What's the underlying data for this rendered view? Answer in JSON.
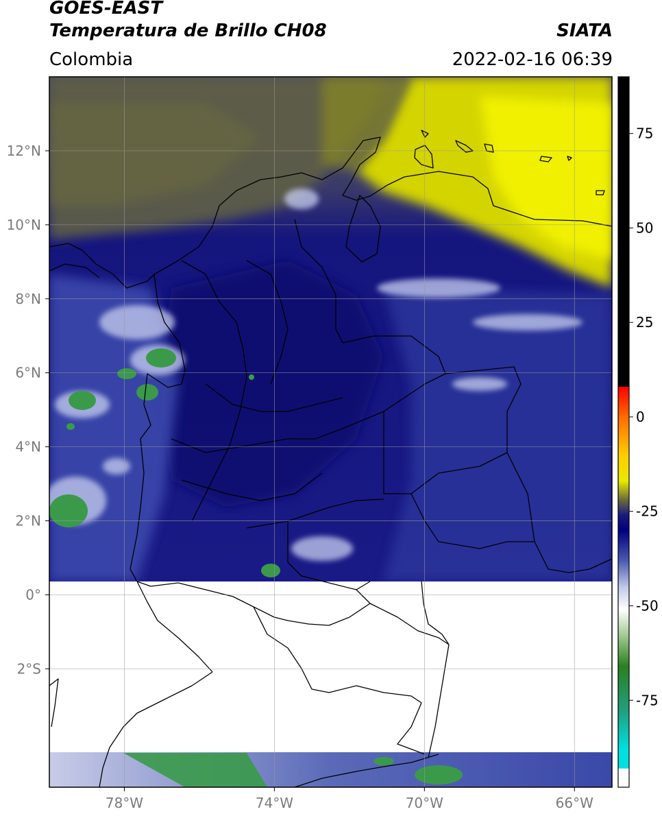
{
  "header": {
    "title_line1": "GOES-EAST",
    "title_line2": "Temperatura de Brillo CH08",
    "brand": "SIATA",
    "region": "Colombia",
    "timestamp": "2022-02-16 06:39"
  },
  "map": {
    "extent": {
      "lon_min": -80.0,
      "lon_max": -65.0,
      "lat_min": -5.2,
      "lat_max": 14.0
    },
    "lat_ticks": [
      {
        "value": 12,
        "label": "12°N"
      },
      {
        "value": 10,
        "label": "10°N"
      },
      {
        "value": 8,
        "label": "8°N"
      },
      {
        "value": 6,
        "label": "6°N"
      },
      {
        "value": 4,
        "label": "4°N"
      },
      {
        "value": 2,
        "label": "2°N"
      },
      {
        "value": 0,
        "label": "0°"
      },
      {
        "value": -2,
        "label": "2°S"
      }
    ],
    "lon_ticks": [
      {
        "value": -78,
        "label": "78°W"
      },
      {
        "value": -74,
        "label": "74°W"
      },
      {
        "value": -70,
        "label": "70°W"
      },
      {
        "value": -66,
        "label": "66°W"
      }
    ],
    "data_gap_lat": {
      "from": -4.0,
      "to": 0.6
    },
    "grid": true
  },
  "colorbar": {
    "range": [
      -98,
      90
    ],
    "ticks": [
      {
        "value": 75,
        "label": "75"
      },
      {
        "value": 50,
        "label": "50"
      },
      {
        "value": 25,
        "label": "25"
      },
      {
        "value": 0,
        "label": "0"
      },
      {
        "value": -25,
        "label": "-25"
      },
      {
        "value": -50,
        "label": "-50"
      },
      {
        "value": -75,
        "label": "-75"
      }
    ],
    "stops": [
      {
        "value": 90,
        "color": "#000000"
      },
      {
        "value": 8,
        "color": "#000000"
      },
      {
        "value": 7.9,
        "color": "#ff0000"
      },
      {
        "value": 0,
        "color": "#ff6a00"
      },
      {
        "value": -10,
        "color": "#ffcc00"
      },
      {
        "value": -17,
        "color": "#e8e800"
      },
      {
        "value": -22,
        "color": "#6a6a3a"
      },
      {
        "value": -26,
        "color": "#1a1a80"
      },
      {
        "value": -30,
        "color": "#000080"
      },
      {
        "value": -38,
        "color": "#4a5ab0"
      },
      {
        "value": -45,
        "color": "#c0c8e8"
      },
      {
        "value": -51,
        "color": "#ffffff"
      },
      {
        "value": -58,
        "color": "#a0c890"
      },
      {
        "value": -66,
        "color": "#2a8020"
      },
      {
        "value": -78,
        "color": "#20a080"
      },
      {
        "value": -88,
        "color": "#00e0e0"
      },
      {
        "value": -93,
        "color": "#00e0e0"
      },
      {
        "value": -93.1,
        "color": "#ffffff"
      },
      {
        "value": -98,
        "color": "#ffffff"
      }
    ]
  },
  "palette": {
    "olive_dark": "#5c5c3c",
    "olive": "#7a7a3a",
    "yellow": "#e6e600",
    "navy": "#15157e",
    "navy_dark": "#0a0a70",
    "blue_mid": "#3a48a8",
    "cloud_light": "#cfd5ee",
    "green": "#3a9a4a",
    "green_dark": "#2a7a3a"
  }
}
